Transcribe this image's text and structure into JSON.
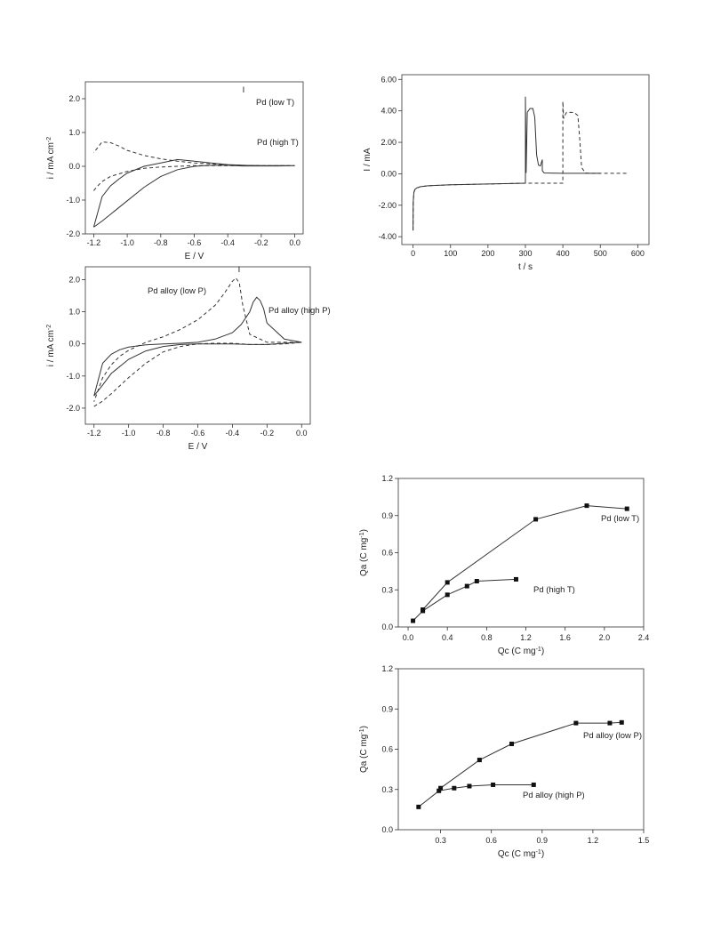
{
  "chart_data": [
    {
      "id": "cv_temperature",
      "type": "line",
      "xlabel": "E / V",
      "ylabel_parts": [
        "i / mA cm",
        "-2"
      ],
      "xlim": [
        -1.25,
        0.05
      ],
      "ylim": [
        -2.0,
        2.5
      ],
      "xticks": [
        -1.2,
        -1.0,
        -0.8,
        -0.6,
        -0.4,
        -0.2,
        0.0
      ],
      "xtick_labels": [
        "-1.2",
        "-1.0",
        "-0.8",
        "-0.6",
        "-0.4",
        "-0.2",
        "0.0"
      ],
      "yticks": [
        -2.0,
        -1.0,
        0.0,
        1.0,
        2.0
      ],
      "ytick_labels": [
        "-2.0",
        "-1.0",
        "0.0",
        "1.0",
        "2.0"
      ],
      "peak_marker": "I",
      "series": [
        {
          "name": "Pd (low T)",
          "style": "solid",
          "x": [
            -1.2,
            -1.15,
            -1.1,
            -1.0,
            -0.9,
            -0.8,
            -0.7,
            -0.6,
            -0.5,
            -0.45,
            -0.4,
            -0.36,
            -0.34,
            -0.32,
            -0.3,
            -0.28,
            -0.26,
            -0.24,
            -0.2,
            -0.1,
            0.0,
            -0.1,
            -0.2,
            -0.3,
            -0.4,
            -0.5,
            -0.6,
            -0.7,
            -0.8,
            -0.9,
            -1.0,
            -1.05,
            -1.1,
            -1.15,
            -1.2
          ],
          "y": [
            -1.8,
            -1.62,
            -1.42,
            -1.02,
            -0.62,
            -0.3,
            -0.1,
            0.0,
            0.03,
            0.03,
            0.03,
            0.02,
            0.02,
            0.01,
            0.01,
            0.01,
            0.01,
            0.01,
            0.01,
            0.01,
            0.02,
            0.02,
            0.02,
            0.03,
            0.05,
            0.1,
            0.15,
            0.2,
            0.1,
            0.0,
            -0.2,
            -0.38,
            -0.58,
            -0.9,
            -1.8
          ]
        },
        {
          "name": "Pd (high T)",
          "style": "dashed",
          "x": [
            -1.2,
            -1.18,
            -1.15,
            -1.1,
            -1.0,
            -0.9,
            -0.8,
            -0.7,
            -0.6,
            -0.5,
            -0.4,
            -0.35,
            -0.33,
            -0.31,
            -0.3,
            -0.28,
            -0.26,
            -0.24,
            -0.2,
            -0.1,
            0.0,
            -0.1,
            -0.2,
            -0.3,
            -0.4,
            -0.5,
            -0.6,
            -0.7,
            -0.8,
            -0.9,
            -1.0,
            -1.05,
            -1.1,
            -1.15,
            -1.2
          ],
          "y": [
            -0.72,
            -0.6,
            -0.45,
            -0.3,
            -0.15,
            -0.06,
            -0.02,
            0.0,
            0.02,
            0.02,
            0.02,
            0.02,
            0.02,
            0.02,
            0.02,
            0.02,
            0.02,
            0.02,
            0.02,
            0.02,
            0.02,
            0.02,
            0.02,
            0.03,
            0.04,
            0.07,
            0.1,
            0.15,
            0.22,
            0.32,
            0.47,
            0.6,
            0.7,
            0.72,
            0.4
          ]
        }
      ],
      "annotations": [
        "Pd (low T)",
        "Pd (high T)"
      ]
    },
    {
      "id": "chronoamperometry",
      "type": "line",
      "xlabel": "t / s",
      "ylabel": "I / mA",
      "xlim": [
        -30,
        630
      ],
      "ylim": [
        -4.5,
        6.3
      ],
      "xticks": [
        0,
        100,
        200,
        300,
        400,
        500,
        600
      ],
      "xtick_labels": [
        "0",
        "100",
        "200",
        "300",
        "400",
        "500",
        "600"
      ],
      "yticks": [
        -4.0,
        -2.0,
        0.0,
        2.0,
        4.0,
        6.0
      ],
      "ytick_labels": [
        "-4.00",
        "-2.00",
        "0.00",
        "2.00",
        "4.00",
        "6.00"
      ],
      "series": [
        {
          "name": "solid",
          "style": "solid",
          "x": [
            0,
            0.5,
            2,
            5,
            10,
            20,
            40,
            100,
            200,
            300,
            300,
            302,
            305,
            312,
            320,
            325,
            330,
            335,
            340,
            345,
            345,
            350,
            400,
            450,
            500
          ],
          "y": [
            -3.6,
            -1.8,
            -1.2,
            -1.0,
            -0.9,
            -0.82,
            -0.76,
            -0.7,
            -0.65,
            -0.6,
            4.9,
            0.05,
            3.9,
            4.15,
            4.15,
            3.6,
            1.2,
            0.55,
            0.5,
            0.9,
            0.2,
            0.05,
            0.03,
            0.03,
            0.03
          ]
        },
        {
          "name": "dashed",
          "style": "dashed",
          "x": [
            0,
            0.5,
            2,
            5,
            10,
            20,
            40,
            100,
            200,
            300,
            400,
            400,
            402,
            405,
            410,
            420,
            430,
            440,
            445,
            450,
            460,
            470,
            500,
            550,
            570
          ],
          "y": [
            -3.6,
            -1.8,
            -1.2,
            -1.0,
            -0.9,
            -0.82,
            -0.76,
            -0.7,
            -0.65,
            -0.6,
            -0.6,
            4.6,
            3.5,
            3.7,
            3.9,
            3.9,
            3.9,
            3.7,
            2.2,
            0.4,
            0.05,
            0.03,
            0.03,
            0.03,
            0.03
          ]
        }
      ]
    },
    {
      "id": "cv_pressure",
      "type": "line",
      "xlabel": "E / V",
      "ylabel_parts": [
        "i / mA cm",
        "-2"
      ],
      "xlim": [
        -1.25,
        0.05
      ],
      "ylim": [
        -2.5,
        2.4
      ],
      "xticks": [
        -1.2,
        -1.0,
        -0.8,
        -0.6,
        -0.4,
        -0.2,
        0.0
      ],
      "xtick_labels": [
        "-1.2",
        "-1.0",
        "-0.8",
        "-0.6",
        "-0.4",
        "-0.2",
        "0.0"
      ],
      "yticks": [
        -2.0,
        -1.0,
        0.0,
        1.0,
        2.0
      ],
      "ytick_labels": [
        "-2.0",
        "-1.0",
        "0.0",
        "1.0",
        "2.0"
      ],
      "peak_marker": "I",
      "series": [
        {
          "name": "Pd alloy (low P)",
          "style": "dashed",
          "x": [
            -1.2,
            -1.15,
            -1.1,
            -1.0,
            -0.9,
            -0.8,
            -0.7,
            -0.6,
            -0.5,
            -0.4,
            -0.35,
            -0.3,
            -0.2,
            -0.1,
            0.0,
            -0.1,
            -0.2,
            -0.3,
            -0.34,
            -0.36,
            -0.38,
            -0.4,
            -0.45,
            -0.5,
            -0.6,
            -0.7,
            -0.8,
            -0.9,
            -1.0,
            -1.05,
            -1.1,
            -1.15,
            -1.2
          ],
          "y": [
            -1.95,
            -1.78,
            -1.55,
            -1.05,
            -0.6,
            -0.25,
            -0.08,
            0.0,
            0.02,
            0.02,
            0.0,
            -0.02,
            -0.02,
            0.0,
            0.05,
            0.05,
            0.05,
            0.3,
            1.2,
            1.9,
            2.05,
            1.95,
            1.55,
            1.2,
            0.75,
            0.45,
            0.22,
            0.05,
            -0.2,
            -0.38,
            -0.65,
            -1.05,
            -1.8
          ]
        },
        {
          "name": "Pd alloy (high P)",
          "style": "solid",
          "x": [
            -1.2,
            -1.15,
            -1.1,
            -1.0,
            -0.9,
            -0.8,
            -0.7,
            -0.6,
            -0.5,
            -0.4,
            -0.3,
            -0.2,
            -0.1,
            0.0,
            -0.1,
            -0.2,
            -0.22,
            -0.24,
            -0.26,
            -0.28,
            -0.3,
            -0.35,
            -0.4,
            -0.5,
            -0.6,
            -0.7,
            -0.8,
            -0.9,
            -1.0,
            -1.05,
            -1.1,
            -1.15,
            -1.2
          ],
          "y": [
            -1.62,
            -1.28,
            -0.92,
            -0.48,
            -0.22,
            -0.08,
            -0.02,
            0.0,
            0.0,
            0.0,
            -0.02,
            -0.02,
            0.02,
            0.05,
            0.15,
            0.65,
            1.1,
            1.35,
            1.45,
            1.3,
            1.0,
            0.6,
            0.35,
            0.15,
            0.05,
            0.02,
            0.0,
            -0.03,
            -0.1,
            -0.18,
            -0.32,
            -0.6,
            -1.62
          ]
        }
      ],
      "annotations": [
        "Pd alloy (low P)",
        "Pd alloy (high P)"
      ]
    },
    {
      "id": "qa_vs_qc_temperature",
      "type": "scatter",
      "xlabel_parts": [
        "Qc (C mg",
        "-1",
        ")"
      ],
      "ylabel_parts": [
        "Qa (C mg",
        "-1",
        ")"
      ],
      "xlim": [
        -0.1,
        2.4
      ],
      "ylim": [
        0.0,
        1.2
      ],
      "xticks": [
        0.0,
        0.4,
        0.8,
        1.2,
        1.6,
        2.0,
        2.4
      ],
      "xtick_labels": [
        "0.0",
        "0.4",
        "0.8",
        "1.2",
        "1.6",
        "2.0",
        "2.4"
      ],
      "yticks": [
        0.0,
        0.3,
        0.6,
        0.9,
        1.2
      ],
      "ytick_labels": [
        "0.0",
        "0.3",
        "0.6",
        "0.9",
        "1.2"
      ],
      "series": [
        {
          "name": "Pd (low T)",
          "x": [
            0.15,
            0.4,
            1.3,
            1.82,
            2.23
          ],
          "y": [
            0.14,
            0.36,
            0.87,
            0.98,
            0.955
          ]
        },
        {
          "name": "Pd (high T)",
          "x": [
            0.05,
            0.15,
            0.4,
            0.6,
            0.7,
            1.1
          ],
          "y": [
            0.05,
            0.13,
            0.26,
            0.33,
            0.37,
            0.385
          ]
        }
      ],
      "annotations": [
        "Pd (low T)",
        "Pd (high T)"
      ]
    },
    {
      "id": "qa_vs_qc_pressure",
      "type": "scatter",
      "xlabel_parts": [
        "Qc (C mg",
        "-1",
        ")"
      ],
      "ylabel_parts": [
        "Qa (C mg",
        "-1",
        ")"
      ],
      "xlim": [
        0.05,
        1.5
      ],
      "ylim": [
        0.0,
        1.2
      ],
      "xticks": [
        0.3,
        0.6,
        0.9,
        1.2,
        1.5
      ],
      "xtick_labels": [
        "0.3",
        "0.6",
        "0.9",
        "1.2",
        "1.5"
      ],
      "yticks": [
        0.0,
        0.3,
        0.6,
        0.9,
        1.2
      ],
      "ytick_labels": [
        "0.0",
        "0.3",
        "0.6",
        "0.9",
        "1.2"
      ],
      "series": [
        {
          "name": "Pd alloy (low P)",
          "x": [
            0.3,
            0.53,
            0.72,
            1.1,
            1.3,
            1.37
          ],
          "y": [
            0.31,
            0.52,
            0.64,
            0.795,
            0.795,
            0.8
          ]
        },
        {
          "name": "Pd alloy (high P)",
          "x": [
            0.17,
            0.29,
            0.38,
            0.47,
            0.61,
            0.85
          ],
          "y": [
            0.17,
            0.29,
            0.31,
            0.325,
            0.335,
            0.335
          ]
        }
      ],
      "annotations": [
        "Pd alloy (low P)",
        "Pd alloy (high P)"
      ]
    }
  ]
}
